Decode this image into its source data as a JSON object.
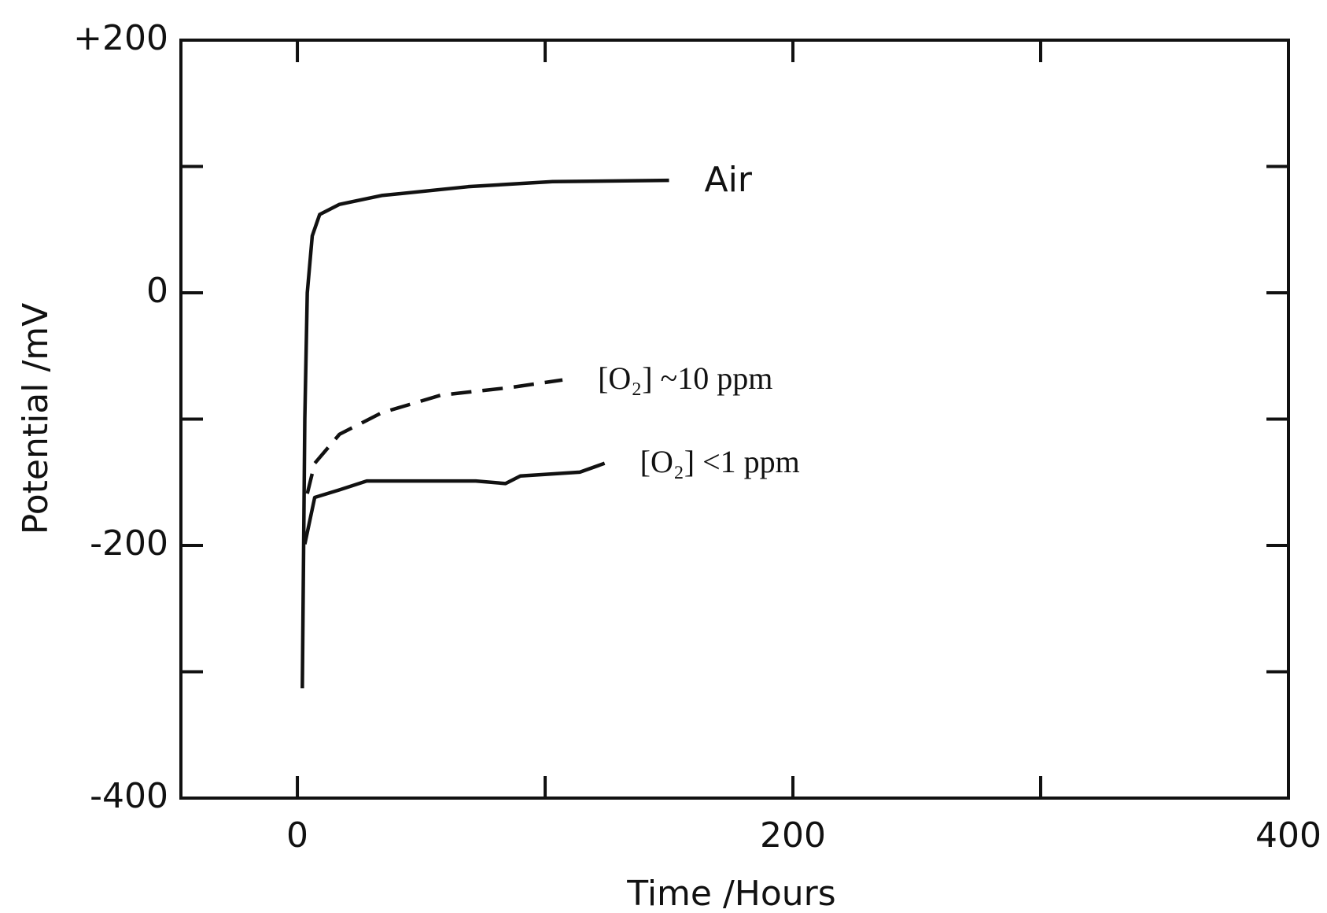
{
  "chart_data": {
    "type": "line",
    "x_label": "Time /Hours",
    "y_label": "Potential /mV",
    "xlim": [
      -47,
      400
    ],
    "xticks": [
      0,
      200,
      400
    ],
    "xminor_ticks": [
      100,
      300
    ],
    "ylim": [
      -400,
      200
    ],
    "yticks": [
      {
        "value": 200,
        "label": "+200"
      },
      0,
      -200,
      -400
    ],
    "yminor_ticks": [
      100,
      -100,
      -300
    ],
    "series": [
      {
        "name": "Air",
        "color": "#111111",
        "dashed": false,
        "x": [
          2,
          3,
          4,
          6,
          9,
          17,
          34,
          69,
          103,
          150
        ],
        "values": [
          -313,
          -100,
          0,
          45,
          62,
          70,
          77,
          84,
          88,
          89
        ]
      },
      {
        "name": "[O₂] ~10 ppm",
        "color": "#111111",
        "dashed": true,
        "x": [
          4,
          7,
          17,
          34,
          58,
          86,
          107
        ],
        "values": [
          -159,
          -135,
          -112,
          -95,
          -81,
          -75,
          -69
        ]
      },
      {
        "name": "[O₂] <1 ppm",
        "color": "#111111",
        "dashed": false,
        "x": [
          3,
          7,
          17,
          28,
          52,
          72,
          84,
          90,
          114,
          124
        ],
        "values": [
          -199,
          -162,
          -156,
          -149,
          -149,
          -149,
          -151,
          -145,
          -142,
          -135
        ]
      }
    ]
  }
}
